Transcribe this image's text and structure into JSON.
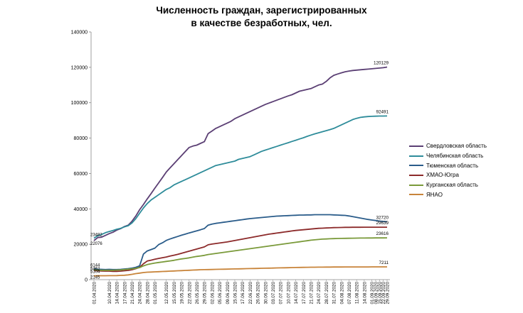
{
  "chart_data": {
    "type": "line",
    "title_lines": [
      "Численность граждан, зарегистрированных",
      "в качестве безработных, чел."
    ],
    "xlabel": "",
    "ylabel": "",
    "ylim": [
      0,
      140000
    ],
    "yticks": [
      "0",
      "20000",
      "40000",
      "60000",
      "80000",
      "100000",
      "120000",
      "140000"
    ],
    "grid": false,
    "legend_position": "right",
    "x": [
      "01.04.2020",
      "03.04.2020",
      "06.04.2020",
      "08.04.2020",
      "10.04.2020",
      "13.04.2020",
      "14.04.2020",
      "15.04.2020",
      "17.04.2020",
      "20.04.2020",
      "21.04.2020",
      "22.04.2020",
      "24.04.2020",
      "27.04.2020",
      "28.04.2020",
      "30.04.2020",
      "01.05.2020",
      "06.05.2020",
      "08.05.2020",
      "12.05.2020",
      "13.05.2020",
      "15.05.2020",
      "18.05.2020",
      "19.05.2020",
      "20.05.2020",
      "22.05.2020",
      "25.05.2020",
      "26.05.2020",
      "27.05.2020",
      "29.05.2020",
      "01.06.2020",
      "02.06.2020",
      "03.06.2020",
      "05.06.2020",
      "08.06.2020",
      "09.06.2020",
      "10.06.2020",
      "15.06.2020",
      "16.06.2020",
      "17.06.2020",
      "19.06.2020",
      "22.06.2020",
      "23.06.2020",
      "26.06.2020",
      "29.06.2020",
      "30.06.2020",
      "01.07.2020",
      "03.07.2020",
      "06.07.2020",
      "07.07.2020",
      "08.07.2020",
      "10.07.2020",
      "13.07.2020",
      "14.07.2020",
      "15.07.2020",
      "17.07.2020",
      "20.07.2020",
      "21.07.2020",
      "22.07.2020",
      "24.07.2020",
      "27.07.2020",
      "28.07.2020",
      "29.07.2020",
      "31.07.2020",
      "03.08.2020",
      "04.08.2020",
      "05.08.2020",
      "07.08.2020",
      "10.08.2020",
      "11.08.2020",
      "12.08.2020",
      "14.08.2020",
      "17.08.2020",
      "01.09.2020",
      "08.09.2020",
      "15.09.2020",
      "22.09.2020",
      "29.09.2020"
    ],
    "x_tick_labels": [
      "01.04.2020",
      "10.04.2020",
      "14.04.2020",
      "17.04.2020",
      "21.04.2020",
      "24.04.2020",
      "28.04.2020",
      "01.05.2020",
      "12.05.2020",
      "15.05.2020",
      "19.05.2020",
      "22.05.2020",
      "26.05.2020",
      "29.05.2020",
      "02.06.2020",
      "05.06.2020",
      "09.06.2020",
      "15.06.2020",
      "17.06.2020",
      "22.06.2020",
      "26.06.2020",
      "30.06.2020",
      "03.07.2020",
      "07.07.2020",
      "10.07.2020",
      "14.07.2020",
      "17.07.2020",
      "21.07.2020",
      "24.07.2020",
      "28.07.2020",
      "31.07.2020",
      "04.08.2020",
      "07.08.2020",
      "11.08.2020",
      "14.08.2020",
      "01.09.2020",
      "08.09.2020",
      "15.09.2020",
      "22.09.2020",
      "29.09.2020"
    ],
    "series": [
      {
        "name": "Свердловская область",
        "color": "#5b3f74",
        "start_label": "22076",
        "end_label": "120129",
        "values": [
          22076,
          23800,
          24000,
          25000,
          26000,
          26800,
          28000,
          28800,
          30000,
          30800,
          33000,
          36000,
          39500,
          42500,
          45600,
          48600,
          51700,
          54700,
          57700,
          60800,
          63200,
          65500,
          67800,
          70100,
          72400,
          74700,
          75500,
          76000,
          77000,
          78000,
          82500,
          84000,
          85500,
          86500,
          87500,
          88500,
          89500,
          91000,
          92000,
          93000,
          94000,
          95000,
          96000,
          97000,
          98000,
          99000,
          99800,
          100600,
          101400,
          102200,
          103000,
          103800,
          104500,
          105500,
          106500,
          107000,
          107500,
          108000,
          109000,
          110000,
          110500,
          112000,
          114000,
          115500,
          116200,
          116900,
          117500,
          117900,
          118200,
          118400,
          118600,
          118800,
          119000,
          119200,
          119400,
          119600,
          119800,
          120129
        ]
      },
      {
        "name": "Челябинская область",
        "color": "#2e8c9a",
        "start_label": "23482",
        "end_label": "92491",
        "values": [
          23482,
          24800,
          25500,
          26500,
          27200,
          27800,
          28500,
          29000,
          29800,
          30500,
          32000,
          34500,
          37500,
          40500,
          43000,
          45000,
          46500,
          48000,
          49500,
          51000,
          52000,
          53500,
          54500,
          55500,
          56500,
          57500,
          58500,
          59500,
          60500,
          61500,
          62500,
          63500,
          64500,
          65000,
          65500,
          66000,
          66500,
          67000,
          68000,
          68500,
          69000,
          69500,
          70500,
          71500,
          72500,
          73200,
          73900,
          74600,
          75300,
          76000,
          76700,
          77400,
          78100,
          78800,
          79500,
          80200,
          81000,
          81700,
          82400,
          83000,
          83600,
          84200,
          84800,
          85500,
          86500,
          87500,
          88500,
          89500,
          90500,
          91200,
          91700,
          92000,
          92200,
          92300,
          92400,
          92450,
          92480,
          92491
        ]
      },
      {
        "name": "Тюменская область",
        "color": "#2a5c8a",
        "start_label": "6144",
        "end_label": "32720",
        "values": [
          6144,
          5900,
          5800,
          5700,
          5800,
          5700,
          5700,
          5800,
          6000,
          6200,
          6500,
          7000,
          7800,
          14500,
          16200,
          17000,
          17800,
          19800,
          20800,
          22200,
          23000,
          23700,
          24400,
          25100,
          25700,
          26400,
          27000,
          27600,
          28200,
          28900,
          30800,
          31400,
          31800,
          32100,
          32400,
          32700,
          33000,
          33300,
          33600,
          33900,
          34200,
          34500,
          34700,
          34900,
          35100,
          35300,
          35500,
          35700,
          35900,
          36000,
          36100,
          36200,
          36300,
          36400,
          36500,
          36500,
          36600,
          36600,
          36700,
          36700,
          36700,
          36700,
          36700,
          36600,
          36500,
          36400,
          36300,
          36000,
          35600,
          35200,
          34800,
          34400,
          34000,
          33700,
          33400,
          33100,
          32900,
          32720
        ]
      },
      {
        "name": "ХМАО-Югра",
        "color": "#8c2a2a",
        "start_label": "5104",
        "end_label": "29639",
        "values": [
          5104,
          5000,
          4900,
          4800,
          4800,
          4700,
          4700,
          4800,
          5000,
          5200,
          5600,
          6200,
          7000,
          9000,
          10500,
          11000,
          11500,
          12000,
          12400,
          12800,
          13300,
          13800,
          14300,
          14900,
          15500,
          16100,
          16700,
          17300,
          17900,
          18500,
          19700,
          20100,
          20400,
          20700,
          21000,
          21300,
          21700,
          22100,
          22500,
          22900,
          23300,
          23700,
          24100,
          24500,
          24900,
          25300,
          25700,
          26000,
          26300,
          26600,
          26900,
          27200,
          27500,
          27800,
          28000,
          28200,
          28400,
          28600,
          28800,
          29000,
          29100,
          29200,
          29300,
          29400,
          29450,
          29500,
          29550,
          29580,
          29600,
          29610,
          29620,
          29625,
          29630,
          29632,
          29634,
          29636,
          29638,
          29639
        ]
      },
      {
        "name": "Курганская область",
        "color": "#7a9a3a",
        "start_label": "5462",
        "end_label": "23616",
        "values": [
          5462,
          5400,
          5300,
          5300,
          5300,
          5300,
          5400,
          5500,
          5700,
          5900,
          6100,
          6400,
          6800,
          7800,
          8500,
          9000,
          9400,
          9700,
          10000,
          10300,
          10600,
          10900,
          11300,
          11700,
          12000,
          12300,
          12700,
          13100,
          13400,
          13700,
          14200,
          14500,
          14800,
          15100,
          15400,
          15700,
          16000,
          16300,
          16600,
          16900,
          17200,
          17500,
          17800,
          18100,
          18400,
          18700,
          19000,
          19300,
          19600,
          19900,
          20200,
          20500,
          20800,
          21100,
          21400,
          21700,
          22000,
          22300,
          22500,
          22700,
          22900,
          23000,
          23100,
          23200,
          23250,
          23300,
          23350,
          23400,
          23430,
          23460,
          23490,
          23520,
          23540,
          23560,
          23580,
          23595,
          23605,
          23616
        ]
      },
      {
        "name": "ЯНАО",
        "color": "#c8843a",
        "start_label": "2145",
        "end_label": "7211",
        "values": [
          2145,
          2200,
          2200,
          2200,
          2250,
          2250,
          2300,
          2400,
          2500,
          2700,
          3000,
          3400,
          3700,
          4000,
          4200,
          4300,
          4400,
          4500,
          4600,
          4700,
          4800,
          4900,
          5000,
          5100,
          5200,
          5300,
          5400,
          5500,
          5600,
          5650,
          5700,
          5750,
          5800,
          5850,
          5900,
          5950,
          6000,
          6050,
          6100,
          6150,
          6200,
          6250,
          6300,
          6350,
          6400,
          6450,
          6500,
          6550,
          6600,
          6650,
          6700,
          6750,
          6800,
          6850,
          6900,
          6950,
          7000,
          7020,
          7040,
          7060,
          7080,
          7100,
          7120,
          7140,
          7150,
          7160,
          7170,
          7175,
          7180,
          7185,
          7190,
          7195,
          7200,
          7203,
          7206,
          7208,
          7210,
          7211
        ]
      }
    ]
  }
}
